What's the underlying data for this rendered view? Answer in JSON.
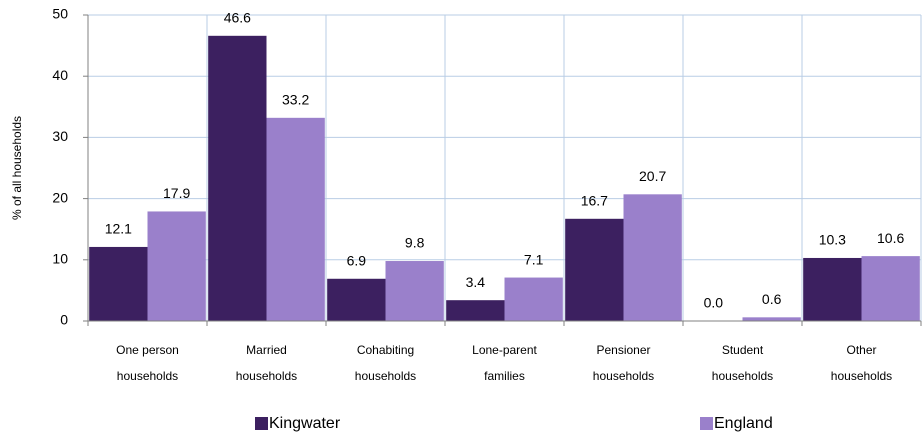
{
  "chart_data": {
    "type": "bar",
    "ylabel": "% of all households",
    "categories": [
      [
        "One person",
        "households"
      ],
      [
        "Married",
        "households"
      ],
      [
        "Cohabiting",
        "households"
      ],
      [
        "Lone-parent",
        "families"
      ],
      [
        "Pensioner",
        "households"
      ],
      [
        "Student",
        "households"
      ],
      [
        "Other",
        "households"
      ]
    ],
    "series": [
      {
        "name": "Kingwater",
        "color": "#3c2060",
        "values": [
          12.1,
          46.6,
          6.9,
          3.4,
          16.7,
          0,
          10.3
        ],
        "value_labels": [
          "12.1",
          "46.6",
          "6.9",
          "3.4",
          "16.7",
          "0.0",
          "10.3"
        ]
      },
      {
        "name": "England",
        "color": "#9a80cb",
        "values": [
          17.9,
          33.2,
          9.8,
          7.1,
          20.7,
          0.6,
          10.6
        ],
        "value_labels": [
          "17.9",
          "33.2",
          "9.8",
          "7.1",
          "20.7",
          "0.6",
          "10.6"
        ]
      }
    ],
    "ylim": [
      0,
      50
    ],
    "yticks": [
      0,
      10,
      20,
      30,
      40,
      50
    ],
    "grid": true,
    "legend": "bottom"
  }
}
